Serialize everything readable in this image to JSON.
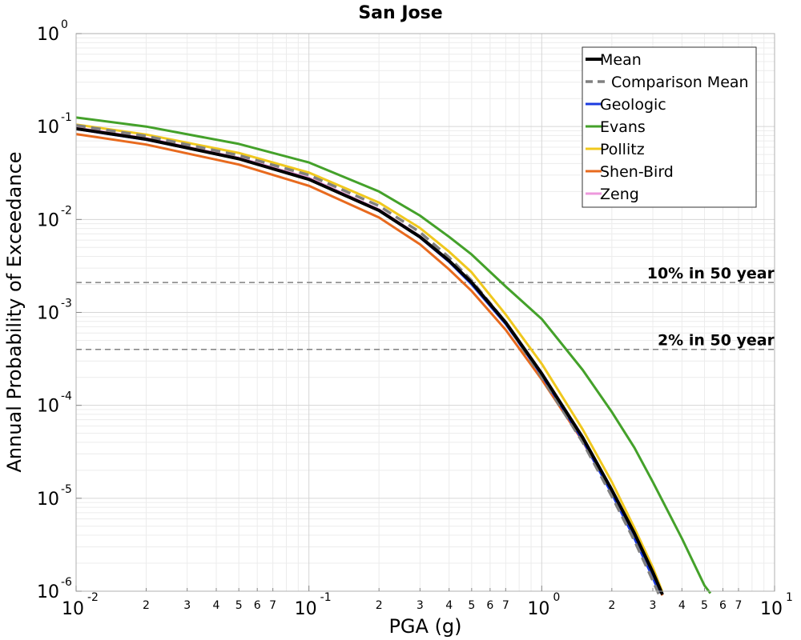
{
  "chart_data": {
    "type": "line",
    "title": "San Jose",
    "xlabel": "PGA (g)",
    "ylabel": "Annual Probability of Exceedance",
    "x_scale": "log",
    "y_scale": "log",
    "xlim": [
      0.01,
      10
    ],
    "ylim": [
      1e-06,
      1
    ],
    "grid": true,
    "legend_position": "top-right",
    "x_major_ticks": [
      {
        "base": "10",
        "exp": "-2",
        "value": 0.01
      },
      {
        "base": "10",
        "exp": "-1",
        "value": 0.1
      },
      {
        "base": "10",
        "exp": "0",
        "value": 1
      },
      {
        "base": "10",
        "exp": "1",
        "value": 10
      }
    ],
    "x_minor_tick_labels": [
      "2",
      "3",
      "4",
      "5",
      "6",
      "7"
    ],
    "y_major_ticks": [
      {
        "base": "10",
        "exp": "0",
        "value": 1
      },
      {
        "base": "10",
        "exp": "-1",
        "value": 0.1
      },
      {
        "base": "10",
        "exp": "-2",
        "value": 0.01
      },
      {
        "base": "10",
        "exp": "-3",
        "value": 0.001
      },
      {
        "base": "10",
        "exp": "-4",
        "value": 0.0001
      },
      {
        "base": "10",
        "exp": "-5",
        "value": 1e-05
      },
      {
        "base": "10",
        "exp": "-6",
        "value": 1e-06
      }
    ],
    "reference_lines": [
      {
        "label": "10% in 50 year",
        "y": 0.0021,
        "color": "#808080"
      },
      {
        "label": "2% in 50 year",
        "y": 0.0004,
        "color": "#808080"
      }
    ],
    "series": [
      {
        "name": "Mean",
        "color": "#000000",
        "dash": "solid",
        "width": 4,
        "x": [
          0.01,
          0.02,
          0.05,
          0.1,
          0.2,
          0.3,
          0.4,
          0.5,
          0.7,
          1.0,
          1.5,
          2.0,
          2.5,
          3.0,
          3.3
        ],
        "y": [
          0.095,
          0.073,
          0.045,
          0.027,
          0.0125,
          0.0065,
          0.0036,
          0.0021,
          0.00078,
          0.00022,
          4.5e-05,
          1.23e-05,
          4.2e-06,
          1.6e-06,
          9.2e-07
        ]
      },
      {
        "name": "Comparison Mean",
        "color": "#808080",
        "dash": "dashed",
        "width": 3.5,
        "x": [
          0.01,
          0.02,
          0.05,
          0.1,
          0.2,
          0.3,
          0.4,
          0.5,
          0.7,
          1.0,
          1.5,
          2.0,
          2.5,
          3.0,
          3.2
        ],
        "y": [
          0.103,
          0.079,
          0.049,
          0.03,
          0.014,
          0.0073,
          0.0039,
          0.0022,
          0.00078,
          0.0002,
          4e-05,
          1.05e-05,
          3.5e-06,
          1.3e-06,
          9e-07
        ]
      },
      {
        "name": "Geologic",
        "color": "#1c3be0",
        "dash": "solid",
        "width": 3,
        "x": [
          0.01,
          0.02,
          0.05,
          0.1,
          0.2,
          0.3,
          0.4,
          0.5,
          0.7,
          1.0,
          1.5,
          2.0,
          2.5,
          3.0,
          3.2
        ],
        "y": [
          0.094,
          0.072,
          0.045,
          0.027,
          0.0124,
          0.0064,
          0.0035,
          0.002,
          0.00075,
          0.00021,
          4.2e-05,
          1.12e-05,
          3.7e-06,
          1.4e-06,
          9.5e-07
        ]
      },
      {
        "name": "Evans",
        "color": "#44a12a",
        "dash": "solid",
        "width": 3,
        "x": [
          0.01,
          0.02,
          0.05,
          0.1,
          0.2,
          0.3,
          0.4,
          0.5,
          0.7,
          1.0,
          1.5,
          2.0,
          2.5,
          3.0,
          4.0,
          5.0,
          5.3
        ],
        "y": [
          0.125,
          0.1,
          0.065,
          0.041,
          0.02,
          0.011,
          0.0065,
          0.0042,
          0.0019,
          0.00085,
          0.00024,
          8.5e-05,
          3.5e-05,
          1.5e-05,
          3.7e-06,
          1.15e-06,
          9.5e-07
        ]
      },
      {
        "name": "Pollitz",
        "color": "#f0c81e",
        "dash": "solid",
        "width": 3,
        "x": [
          0.01,
          0.02,
          0.05,
          0.1,
          0.2,
          0.3,
          0.4,
          0.5,
          0.7,
          1.0,
          1.5,
          2.0,
          2.5,
          3.0,
          3.3
        ],
        "y": [
          0.105,
          0.082,
          0.052,
          0.032,
          0.0152,
          0.0081,
          0.0045,
          0.0027,
          0.00095,
          0.00028,
          5.5e-05,
          1.5e-05,
          4.8e-06,
          1.8e-06,
          9.8e-07
        ]
      },
      {
        "name": "Shen-Bird",
        "color": "#e86a1e",
        "dash": "solid",
        "width": 3,
        "x": [
          0.01,
          0.02,
          0.05,
          0.1,
          0.2,
          0.3,
          0.4,
          0.5,
          0.7,
          1.0,
          1.5,
          2.0,
          2.5,
          3.0,
          3.3
        ],
        "y": [
          0.083,
          0.064,
          0.039,
          0.023,
          0.0105,
          0.0054,
          0.0029,
          0.0017,
          0.00065,
          0.00019,
          4.1e-05,
          1.15e-05,
          4e-06,
          1.5e-06,
          9e-07
        ]
      },
      {
        "name": "Zeng",
        "color": "#ee99dd",
        "dash": "solid",
        "width": 3,
        "x": [
          0.01,
          0.02,
          0.05,
          0.1,
          0.2,
          0.3,
          0.4,
          0.5,
          0.7,
          1.0,
          1.5,
          2.0,
          2.5,
          3.0,
          3.3
        ],
        "y": [
          0.097,
          0.075,
          0.046,
          0.028,
          0.0128,
          0.0066,
          0.0036,
          0.0021,
          0.00078,
          0.00022,
          4.5e-05,
          1.23e-05,
          4.2e-06,
          1.6e-06,
          9.2e-07
        ]
      }
    ]
  }
}
